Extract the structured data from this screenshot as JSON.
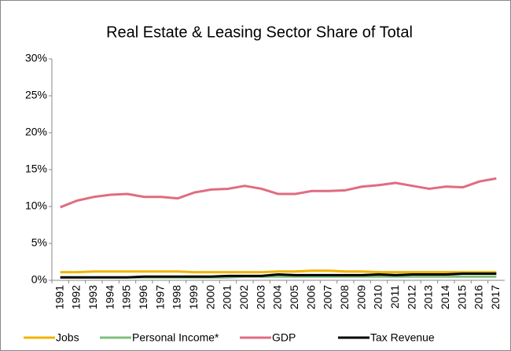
{
  "chart_data": {
    "type": "line",
    "title": "Real Estate & Leasing Sector Share of Total",
    "categories": [
      "1991",
      "1992",
      "1993",
      "1994",
      "1995",
      "1996",
      "1997",
      "1998",
      "1999",
      "2000",
      "2001",
      "2002",
      "2003",
      "2004",
      "2005",
      "2006",
      "2007",
      "2008",
      "2009",
      "2010",
      "2011",
      "2012",
      "2013",
      "2014",
      "2015",
      "2016",
      "2017"
    ],
    "series": [
      {
        "name": "Jobs",
        "color": "#f0b400",
        "values": [
          1.1,
          1.1,
          1.2,
          1.2,
          1.2,
          1.2,
          1.2,
          1.2,
          1.1,
          1.1,
          1.1,
          1.1,
          1.1,
          1.2,
          1.2,
          1.3,
          1.3,
          1.2,
          1.2,
          1.1,
          1.1,
          1.1,
          1.1,
          1.1,
          1.1,
          1.1,
          1.1
        ]
      },
      {
        "name": "Personal Income*",
        "color": "#7fbf7f",
        "values": [
          0.4,
          0.4,
          0.4,
          0.4,
          0.4,
          0.4,
          0.4,
          0.4,
          0.4,
          0.4,
          0.4,
          0.5,
          0.5,
          0.5,
          0.5,
          0.5,
          0.5,
          0.5,
          0.5,
          0.5,
          0.5,
          0.5,
          0.5,
          0.5,
          0.5,
          0.5,
          0.5
        ]
      },
      {
        "name": "GDP",
        "color": "#e06c80",
        "values": [
          9.9,
          10.8,
          11.3,
          11.6,
          11.7,
          11.3,
          11.3,
          11.1,
          11.9,
          12.3,
          12.4,
          12.8,
          12.4,
          11.7,
          11.7,
          12.1,
          12.1,
          12.2,
          12.7,
          12.9,
          13.2,
          12.8,
          12.4,
          12.7,
          12.6,
          13.4,
          13.8
        ]
      },
      {
        "name": "Tax Revenue",
        "color": "#000000",
        "values": [
          0.4,
          0.4,
          0.4,
          0.4,
          0.4,
          0.5,
          0.5,
          0.5,
          0.5,
          0.5,
          0.6,
          0.6,
          0.6,
          0.8,
          0.7,
          0.7,
          0.7,
          0.7,
          0.7,
          0.8,
          0.7,
          0.8,
          0.8,
          0.8,
          0.9,
          0.9,
          0.9
        ]
      }
    ],
    "ylim": [
      0,
      30
    ],
    "yticks": [
      {
        "value": 0,
        "label": "0%"
      },
      {
        "value": 5,
        "label": "5%"
      },
      {
        "value": 10,
        "label": "10%"
      },
      {
        "value": 15,
        "label": "15%"
      },
      {
        "value": 20,
        "label": "20%"
      },
      {
        "value": 25,
        "label": "25%"
      },
      {
        "value": 30,
        "label": "30%"
      }
    ],
    "grid": false,
    "legend": "bottom"
  }
}
